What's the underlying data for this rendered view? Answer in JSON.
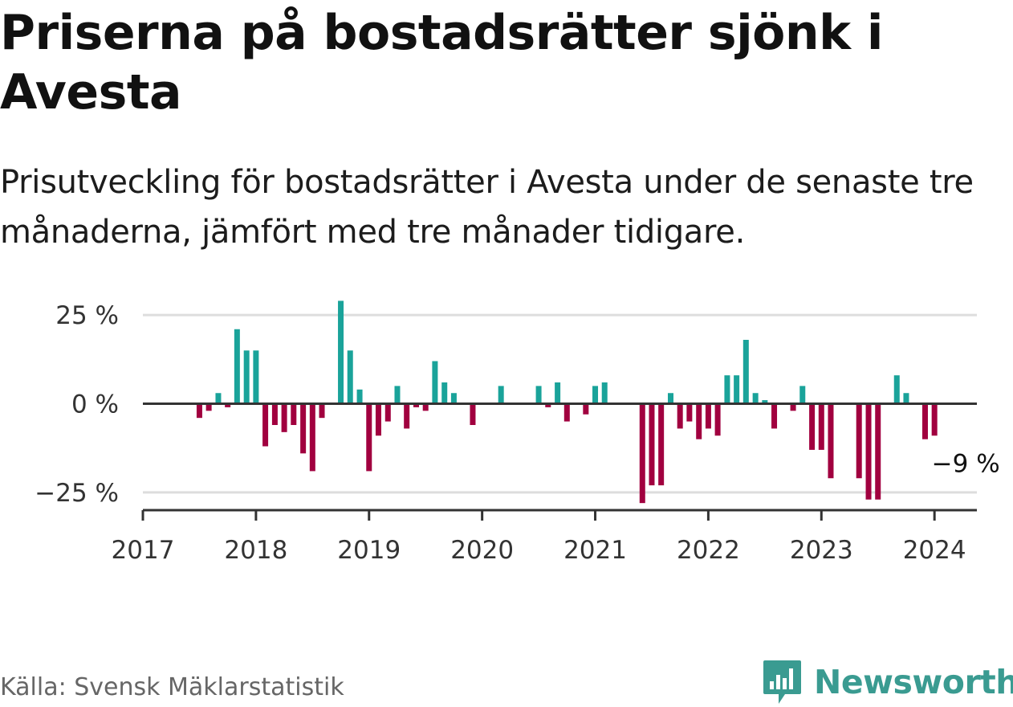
{
  "header": {
    "title": "Priserna på bostadsrätter sjönk i Avesta",
    "subtitle": "Prisutveckling för bostadsrätter i Avesta under de senaste tre månaderna, jämfört med tre månader tidigare."
  },
  "footer": {
    "source": "Källa: Svensk Mäklarstatistik",
    "brand": "Newsworthy"
  },
  "colors": {
    "positive": "#1aa39a",
    "negative": "#a1003f",
    "grid": "#dddddd",
    "axis": "#333333",
    "brand": "#3a9b91"
  },
  "chart_data": {
    "type": "bar",
    "title": "Priserna på bostadsrätter sjönk i Avesta",
    "ylabel": "",
    "xlabel": "",
    "ylim": [
      -30,
      30
    ],
    "xlim": [
      2017.0,
      2024.375
    ],
    "y_ticks": [
      {
        "value": 25,
        "label": "25 %"
      },
      {
        "value": 0,
        "label": "0 %"
      },
      {
        "value": -25,
        "label": "−25 %"
      }
    ],
    "x_ticks": [
      {
        "value": 2017,
        "label": "2017"
      },
      {
        "value": 2018,
        "label": "2018"
      },
      {
        "value": 2019,
        "label": "2019"
      },
      {
        "value": 2020,
        "label": "2020"
      },
      {
        "value": 2021,
        "label": "2021"
      },
      {
        "value": 2022,
        "label": "2022"
      },
      {
        "value": 2023,
        "label": "2023"
      },
      {
        "value": 2024,
        "label": "2024"
      }
    ],
    "x": [
      2017.5,
      2017.583,
      2017.667,
      2017.75,
      2017.833,
      2017.917,
      2018.0,
      2018.083,
      2018.167,
      2018.25,
      2018.333,
      2018.417,
      2018.5,
      2018.583,
      2018.75,
      2018.833,
      2018.917,
      2019.0,
      2019.083,
      2019.167,
      2019.25,
      2019.333,
      2019.417,
      2019.5,
      2019.583,
      2019.667,
      2019.75,
      2019.917,
      2020.167,
      2020.5,
      2020.583,
      2020.667,
      2020.75,
      2020.917,
      2021.0,
      2021.083,
      2021.417,
      2021.5,
      2021.583,
      2021.667,
      2021.75,
      2021.833,
      2021.917,
      2022.0,
      2022.083,
      2022.167,
      2022.25,
      2022.333,
      2022.417,
      2022.5,
      2022.583,
      2022.75,
      2022.833,
      2022.917,
      2023.0,
      2023.083,
      2023.333,
      2023.417,
      2023.5,
      2023.667,
      2023.75,
      2023.917,
      2024.0
    ],
    "values": [
      -4,
      -2,
      3,
      -1,
      21,
      15,
      15,
      -12,
      -6,
      -8,
      -6,
      -14,
      -19,
      -4,
      29,
      15,
      4,
      -19,
      -9,
      -5,
      5,
      -7,
      -1,
      -2,
      12,
      6,
      3,
      -6,
      5,
      5,
      -1,
      6,
      -5,
      -3,
      5,
      6,
      -28,
      -23,
      -23,
      3,
      -7,
      -5,
      -10,
      -7,
      -9,
      8,
      8,
      18,
      3,
      1,
      -7,
      -2,
      5,
      -13,
      -13,
      -21,
      -21,
      -27,
      -27,
      8,
      3,
      -10,
      -9
    ],
    "annotations": [
      {
        "x": 2024.0,
        "y": -9,
        "label": "−9 %"
      }
    ]
  }
}
